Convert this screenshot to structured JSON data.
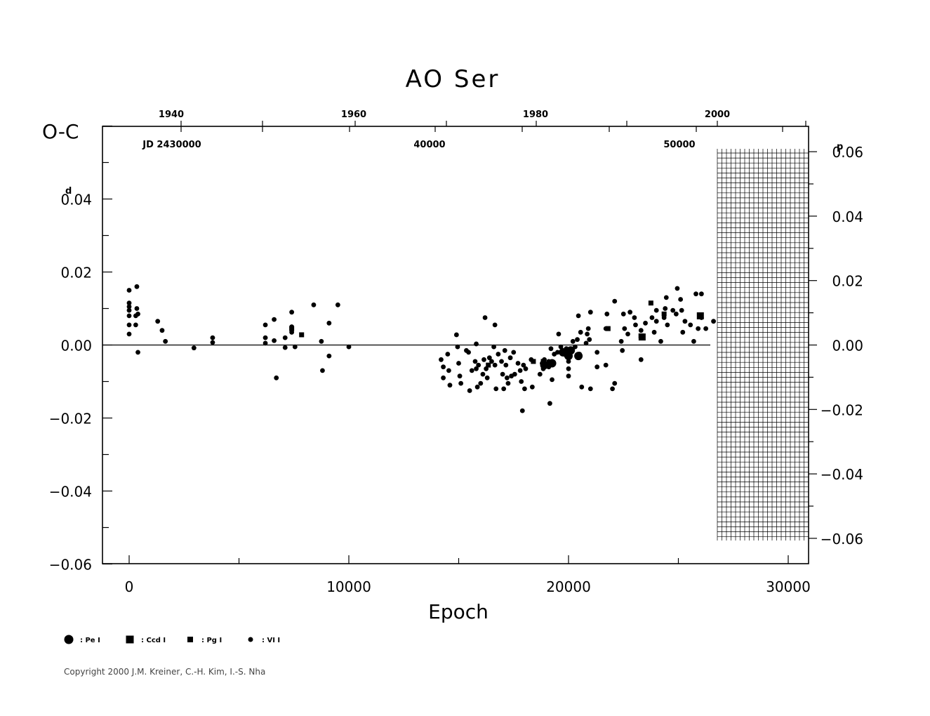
{
  "chart_data": {
    "type": "scatter",
    "title": "AO Ser",
    "xlabel": "Epoch",
    "ylabel": "O-C",
    "xlim": [
      -1200,
      31000
    ],
    "ylim": [
      -0.06,
      0.06
    ],
    "x_ticks": [
      "0",
      "10000",
      "20000",
      "30000"
    ],
    "y_ticks_left": [
      "0.04",
      "0.02",
      "0.00",
      "−0.02",
      "−0.04",
      "−0.06"
    ],
    "y_unit_left": "d",
    "y_ticks_right": [
      "0.06",
      "0.04",
      "0.02",
      "0.00",
      "−0.02",
      "−0.04",
      "−0.06"
    ],
    "y_unit_right": "p",
    "top_year_ticks": [
      "1940",
      "1960",
      "1980",
      "2000"
    ],
    "top_jd_ticks": [
      "JD 2430000",
      "40000",
      "50000"
    ],
    "grid": false,
    "legend": [
      {
        "symbol": "large-dot",
        "label": ": Pe I"
      },
      {
        "symbol": "large-square",
        "label": ": Ccd I"
      },
      {
        "symbol": "small-square",
        "label": ": Pg I"
      },
      {
        "symbol": "small-dot",
        "label": ": VI I"
      }
    ],
    "legend_position": "bottom-left",
    "series": [
      {
        "symbol": "small-dot",
        "points": [
          [
            0,
            0.015
          ],
          [
            0,
            0.0115
          ],
          [
            0,
            0.0105
          ],
          [
            0,
            0.0095
          ],
          [
            0,
            0.008
          ],
          [
            0,
            0.0055
          ],
          [
            0,
            0.003
          ],
          [
            300,
            0.008
          ],
          [
            300,
            0.0055
          ],
          [
            350,
            0.016
          ],
          [
            350,
            0.01
          ],
          [
            400,
            0.0085
          ],
          [
            400,
            -0.002
          ],
          [
            1300,
            0.0065
          ],
          [
            1500,
            0.004
          ],
          [
            1650,
            0.001
          ],
          [
            2950,
            -0.0008
          ],
          [
            3800,
            0.002
          ],
          [
            3800,
            0.0007
          ],
          [
            6200,
            0.0055
          ],
          [
            6200,
            0.002
          ],
          [
            6200,
            0.0005
          ],
          [
            6600,
            0.007
          ],
          [
            6600,
            0.0012
          ],
          [
            6700,
            -0.009
          ],
          [
            7100,
            0.002
          ],
          [
            7100,
            -0.0007
          ],
          [
            7400,
            0.009
          ],
          [
            7400,
            0.005
          ],
          [
            7400,
            0.0035
          ],
          [
            7550,
            -0.0005
          ],
          [
            8400,
            0.011
          ],
          [
            8750,
            0.001
          ],
          [
            8800,
            -0.007
          ],
          [
            9100,
            0.006
          ],
          [
            9100,
            -0.003
          ],
          [
            9500,
            0.011
          ],
          [
            10000,
            -0.0005
          ],
          [
            14200,
            -0.004
          ],
          [
            14300,
            -0.006
          ],
          [
            14300,
            -0.009
          ],
          [
            14500,
            -0.0025
          ],
          [
            14550,
            -0.007
          ],
          [
            14600,
            -0.011
          ],
          [
            14900,
            0.0028
          ],
          [
            14950,
            -0.0005
          ],
          [
            15000,
            -0.005
          ],
          [
            15050,
            -0.0085
          ],
          [
            15100,
            -0.0105
          ],
          [
            15350,
            -0.0015
          ],
          [
            15450,
            -0.002
          ],
          [
            15500,
            -0.0125
          ],
          [
            15600,
            -0.007
          ],
          [
            15750,
            -0.0045
          ],
          [
            15800,
            0.0003
          ],
          [
            15800,
            -0.0065
          ],
          [
            15850,
            -0.0115
          ],
          [
            15900,
            -0.0055
          ],
          [
            16000,
            -0.0105
          ],
          [
            16100,
            -0.008
          ],
          [
            16150,
            -0.004
          ],
          [
            16200,
            0.0075
          ],
          [
            16250,
            -0.0065
          ],
          [
            16300,
            -0.009
          ],
          [
            16400,
            -0.0035
          ],
          [
            16500,
            -0.0045
          ],
          [
            16600,
            -0.0005
          ],
          [
            16650,
            0.0055
          ],
          [
            16650,
            -0.0055
          ],
          [
            16700,
            -0.012
          ],
          [
            16800,
            -0.0025
          ],
          [
            16950,
            -0.0045
          ],
          [
            17000,
            -0.008
          ],
          [
            17050,
            -0.012
          ],
          [
            17100,
            -0.0015
          ],
          [
            17150,
            -0.0055
          ],
          [
            17200,
            -0.009
          ],
          [
            17250,
            -0.0105
          ],
          [
            17350,
            -0.0035
          ],
          [
            17400,
            -0.0085
          ],
          [
            17500,
            -0.002
          ],
          [
            17550,
            -0.008
          ],
          [
            17700,
            -0.005
          ],
          [
            17800,
            -0.007
          ],
          [
            17850,
            -0.01
          ],
          [
            17900,
            -0.018
          ],
          [
            17950,
            -0.0055
          ],
          [
            18000,
            -0.012
          ],
          [
            18050,
            -0.0065
          ],
          [
            18300,
            -0.004
          ],
          [
            18350,
            -0.0115
          ],
          [
            18700,
            -0.008
          ],
          [
            18800,
            -0.005
          ],
          [
            18850,
            -0.0065
          ],
          [
            18900,
            -0.004
          ],
          [
            19050,
            -0.005
          ],
          [
            19100,
            -0.0045
          ],
          [
            19100,
            -0.006
          ],
          [
            19150,
            -0.016
          ],
          [
            19200,
            -0.001
          ],
          [
            19250,
            -0.0095
          ],
          [
            19350,
            -0.0025
          ],
          [
            19500,
            -0.002
          ],
          [
            19550,
            0.003
          ],
          [
            19650,
            -0.0005
          ],
          [
            19800,
            -0.002
          ],
          [
            19900,
            -0.001
          ],
          [
            20000,
            -0.0045
          ],
          [
            20000,
            -0.0065
          ],
          [
            20000,
            -0.0085
          ],
          [
            20100,
            -0.0015
          ],
          [
            20200,
            0.001
          ],
          [
            20300,
            -0.0005
          ],
          [
            20400,
            0.0015
          ],
          [
            20450,
            0.008
          ],
          [
            20500,
            -0.0025
          ],
          [
            20550,
            0.0035
          ],
          [
            20600,
            -0.0115
          ],
          [
            20800,
            0.0005
          ],
          [
            20850,
            0.003
          ],
          [
            20900,
            0.0045
          ],
          [
            20950,
            0.0015
          ],
          [
            21000,
            -0.012
          ],
          [
            21000,
            0.009
          ],
          [
            21300,
            -0.006
          ],
          [
            21300,
            -0.002
          ],
          [
            21700,
            0.0045
          ],
          [
            21700,
            -0.0055
          ],
          [
            21750,
            0.0085
          ],
          [
            22000,
            -0.012
          ],
          [
            22100,
            -0.0105
          ],
          [
            22100,
            0.012
          ],
          [
            22400,
            0.001
          ],
          [
            22450,
            -0.0015
          ],
          [
            22500,
            0.0085
          ],
          [
            22550,
            0.0045
          ],
          [
            22700,
            0.003
          ],
          [
            22800,
            0.009
          ],
          [
            23000,
            0.0075
          ],
          [
            23050,
            0.0055
          ],
          [
            23300,
            -0.004
          ],
          [
            23300,
            0.004
          ],
          [
            23500,
            0.006
          ],
          [
            23800,
            0.0075
          ],
          [
            23900,
            0.0035
          ],
          [
            24000,
            0.0095
          ],
          [
            24000,
            0.0065
          ],
          [
            24200,
            0.001
          ],
          [
            24350,
            0.0075
          ],
          [
            24400,
            0.01
          ],
          [
            24450,
            0.013
          ],
          [
            24500,
            0.0055
          ],
          [
            24750,
            0.0095
          ],
          [
            24900,
            0.0085
          ],
          [
            24950,
            0.0155
          ],
          [
            25100,
            0.0125
          ],
          [
            25150,
            0.0095
          ],
          [
            25200,
            0.0035
          ],
          [
            25300,
            0.0065
          ],
          [
            25550,
            0.0055
          ],
          [
            25700,
            0.001
          ],
          [
            25800,
            0.014
          ],
          [
            25900,
            0.0045
          ],
          [
            26050,
            0.0075
          ],
          [
            26050,
            0.014
          ],
          [
            26250,
            0.0045
          ],
          [
            26600,
            0.0065
          ]
        ]
      },
      {
        "symbol": "small-square",
        "points": [
          [
            7400,
            0.0045
          ],
          [
            7850,
            0.0028
          ],
          [
            16350,
            -0.0055
          ],
          [
            18400,
            -0.0045
          ],
          [
            18850,
            -0.0045
          ],
          [
            19150,
            -0.005
          ],
          [
            21800,
            0.0045
          ],
          [
            23300,
            0.0025
          ],
          [
            23750,
            0.0115
          ],
          [
            24350,
            0.0085
          ]
        ]
      },
      {
        "symbol": "large-square",
        "points": [
          [
            23350,
            0.0022
          ],
          [
            26000,
            0.008
          ]
        ]
      },
      {
        "symbol": "large-dot",
        "points": [
          [
            18900,
            -0.0055
          ],
          [
            19250,
            -0.005
          ],
          [
            19750,
            -0.002
          ],
          [
            19950,
            -0.0025
          ],
          [
            20000,
            -0.003
          ],
          [
            20100,
            -0.0015
          ],
          [
            20450,
            -0.003
          ]
        ]
      }
    ]
  },
  "copyright": "Copyright 2000 J.M. Kreiner, C.-H. Kim, I.-S. Nha"
}
